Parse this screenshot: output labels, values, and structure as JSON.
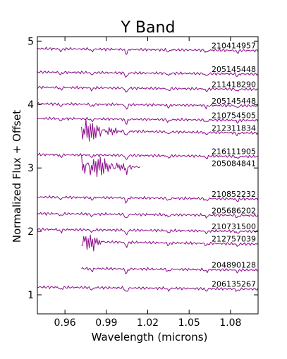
{
  "chart_data": {
    "type": "line",
    "title": "Y Band",
    "xlabel": "Wavelength (microns)",
    "ylabel": "Normalized Flux + Offset",
    "xlim": [
      0.94,
      1.1
    ],
    "ylim": [
      0.7,
      5.07
    ],
    "xticks": [
      0.96,
      0.99,
      1.02,
      1.05,
      1.08
    ],
    "xtick_labels": [
      "0.96",
      "0.99",
      "1.02",
      "1.05",
      "1.08"
    ],
    "yticks": [
      1,
      2,
      3,
      4,
      5
    ],
    "ytick_labels": [
      "1",
      "2",
      "3",
      "4",
      "5"
    ],
    "line_color": "#8b0a8b",
    "grid": false,
    "series": [
      {
        "name": "210414957",
        "offset": 4.87,
        "slope": -0.2,
        "x_start": 0.94,
        "x_end": 1.1,
        "noisy_until": null
      },
      {
        "name": "205145448",
        "offset": 4.5,
        "slope": -0.2,
        "x_start": 0.94,
        "x_end": 1.1,
        "noisy_until": null
      },
      {
        "name": "211418290",
        "offset": 4.26,
        "slope": -0.2,
        "x_start": 0.94,
        "x_end": 1.1,
        "noisy_until": null
      },
      {
        "name": "205145448",
        "offset": 4.0,
        "slope": -0.2,
        "x_start": 0.94,
        "x_end": 1.1,
        "noisy_until": null
      },
      {
        "name": "210754505",
        "offset": 3.77,
        "slope": -0.2,
        "x_start": 0.94,
        "x_end": 1.1,
        "noisy_until": null
      },
      {
        "name": "212311834",
        "offset": 3.58,
        "slope": -0.3,
        "x_start": 0.972,
        "x_end": 1.1,
        "noisy_until": 1.003
      },
      {
        "name": "216111905",
        "offset": 3.2,
        "slope": -0.2,
        "x_start": 0.94,
        "x_end": 1.1,
        "noisy_until": null
      },
      {
        "name": "205084841",
        "offset": 3.02,
        "slope": -0.3,
        "x_start": 0.972,
        "x_end": 1.015,
        "noisy_until": 1.015
      },
      {
        "name": "210852232",
        "offset": 2.53,
        "slope": -0.2,
        "x_start": 0.94,
        "x_end": 1.1,
        "noisy_until": null
      },
      {
        "name": "205686202",
        "offset": 2.27,
        "slope": -0.2,
        "x_start": 0.94,
        "x_end": 1.1,
        "noisy_until": null
      },
      {
        "name": "210731500",
        "offset": 2.02,
        "slope": -0.2,
        "x_start": 0.94,
        "x_end": 1.1,
        "noisy_until": null
      },
      {
        "name": "212757039",
        "offset": 1.83,
        "slope": -0.3,
        "x_start": 0.972,
        "x_end": 1.1,
        "noisy_until": 0.99
      },
      {
        "name": "204890128",
        "offset": 1.41,
        "slope": -0.2,
        "x_start": 0.972,
        "x_end": 1.1,
        "noisy_until": null
      },
      {
        "name": "206135267",
        "offset": 1.11,
        "slope": -0.2,
        "x_start": 0.94,
        "x_end": 1.1,
        "noisy_until": null
      }
    ]
  }
}
